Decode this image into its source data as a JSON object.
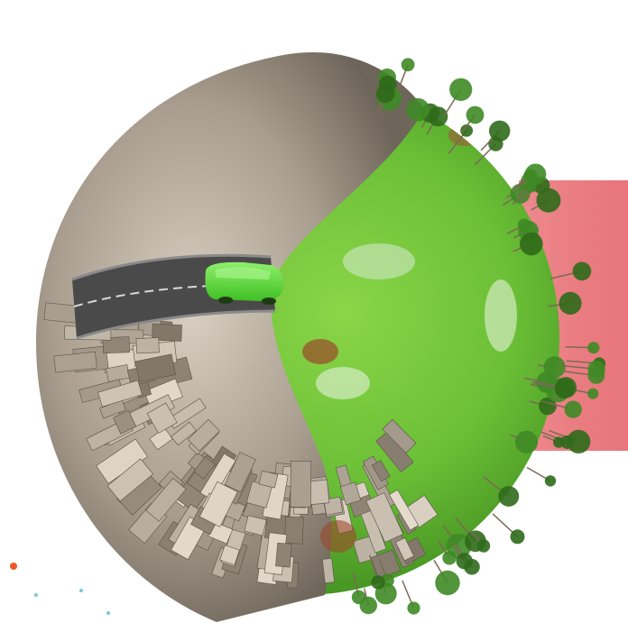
{
  "image": {
    "kind": "illustration",
    "colors": {
      "background": "#ffffff",
      "pink_band": "#e97b80",
      "grass_light": "#79c93f",
      "grass_dark": "#3e8a1e",
      "city_light": "#cfc4b4",
      "city_dark": "#6e655a",
      "road": "#4a4a4a",
      "car": "#5bd63a",
      "trees": "#2f6a1a"
    },
    "elements": [
      "city-hemisphere",
      "grass-hemisphere",
      "road",
      "green-car",
      "trees",
      "pink-band"
    ]
  }
}
